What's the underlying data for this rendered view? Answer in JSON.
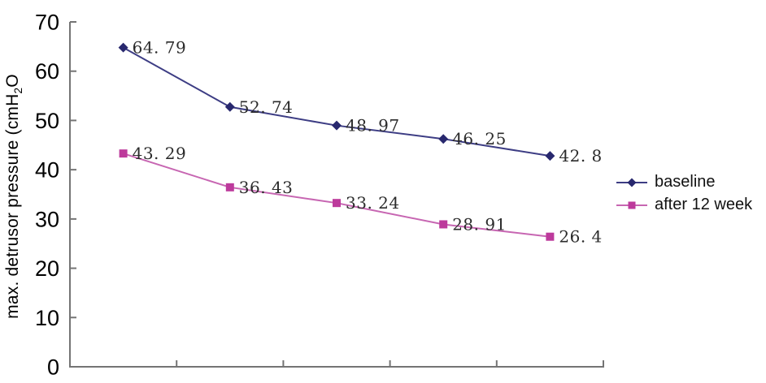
{
  "figure": {
    "background": "#ffffff",
    "axis_color": "#747474",
    "tick_label_color": "#000000",
    "data_label_color": "#2b2b2b"
  },
  "chart_data": {
    "type": "line",
    "title": "",
    "xlabel": "",
    "ylabel": "max. detrusor pressure (cmH₂O",
    "ylabel_parts": {
      "prefix": "max. detrusor pressure (cmH",
      "sub": "2",
      "suffix": "O"
    },
    "ylim": [
      0,
      70
    ],
    "y_ticks": [
      0,
      10,
      20,
      30,
      40,
      50,
      60,
      70
    ],
    "x_tick_labels": [
      "",
      "",
      "",
      "",
      ""
    ],
    "grid": false,
    "legend_position": "right",
    "series": [
      {
        "name": "baseline",
        "marker": "diamond",
        "line_color": "#3d3d84",
        "marker_color": "#28286e",
        "values": [
          64.79,
          52.74,
          48.97,
          46.25,
          42.8
        ],
        "labels": [
          "64. 79",
          "52. 74",
          "48. 97",
          "46. 25",
          "42. 8"
        ]
      },
      {
        "name": "after 12 week",
        "marker": "square",
        "line_color": "#c766b2",
        "marker_color": "#bd3a9c",
        "values": [
          43.29,
          36.43,
          33.24,
          28.91,
          26.4
        ],
        "labels": [
          "43. 29",
          "36. 43",
          "33. 24",
          "28. 91",
          "26. 4"
        ]
      }
    ]
  }
}
